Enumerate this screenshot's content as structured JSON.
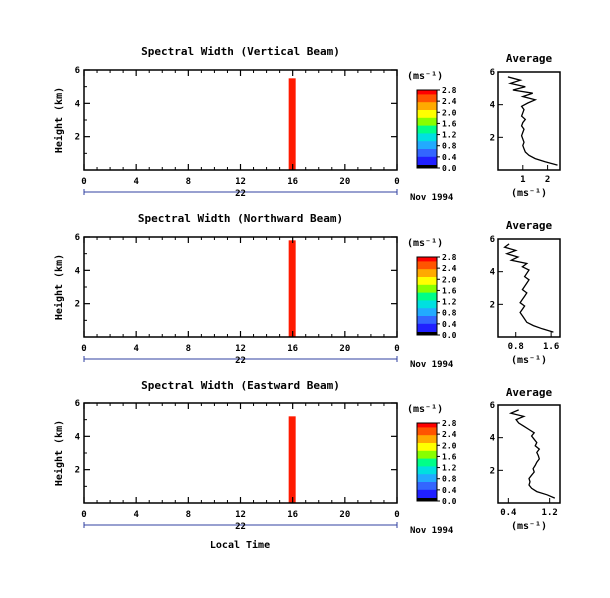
{
  "figure": {
    "x_tick_labels": [
      "0",
      "4",
      "8",
      "12",
      "16",
      "20",
      "0"
    ],
    "day_label": "22",
    "month_label": "Nov 1994",
    "x_axis_label": "Local Time",
    "y_axis_label": "Height (km)",
    "unit_label": "(ms⁻¹)",
    "average_title": "Average"
  },
  "colors": {
    "colormap": [
      "#000000",
      "#2020ff",
      "#3366ff",
      "#22aaff",
      "#00e0e0",
      "#00ff88",
      "#88ff00",
      "#ffff00",
      "#ffaa00",
      "#ff5500",
      "#ff0000"
    ],
    "axis_blue": "#3040a0"
  },
  "chart_data": [
    {
      "type": "heatmap",
      "title": "Spectral Width (Vertical Beam)",
      "xlabel": "",
      "ylabel": "Height (km)",
      "x_range_hours": [
        0,
        24
      ],
      "y_range_km": [
        0,
        6
      ],
      "y_ticks": [
        2,
        4,
        6
      ],
      "y_tick_labels": [
        "2",
        "4",
        "6"
      ],
      "colorbar_unit": "(ms⁻¹)",
      "colorbar_ticks": [
        "0.0",
        "0.4",
        "0.8",
        "1.2",
        "1.6",
        "2.0",
        "2.4",
        "2.8"
      ],
      "average_profile": {
        "title": "Average",
        "xlabel": "(ms⁻¹)",
        "xlim": [
          0,
          2.5
        ],
        "x_ticks": [
          1,
          2
        ],
        "x_tick_labels": [
          "1",
          "2"
        ],
        "y_ticks": [
          2,
          4,
          6
        ],
        "y_tick_labels": [
          "2",
          "4",
          "6"
        ],
        "height_km": [
          0.3,
          0.5,
          0.7,
          0.9,
          1.1,
          1.3,
          1.5,
          1.7,
          1.9,
          2.1,
          2.3,
          2.5,
          2.7,
          2.9,
          3.1,
          3.3,
          3.5,
          3.7,
          3.9,
          4.1,
          4.3,
          4.5,
          4.7,
          4.9,
          5.1,
          5.3,
          5.5,
          5.7
        ],
        "width_ms": [
          2.4,
          1.9,
          1.5,
          1.25,
          1.1,
          1.05,
          1.0,
          1.05,
          1.0,
          0.95,
          1.0,
          1.05,
          0.95,
          1.0,
          1.1,
          0.95,
          1.0,
          1.05,
          0.95,
          1.2,
          1.5,
          1.0,
          1.4,
          0.6,
          1.1,
          0.5,
          0.9,
          0.4
        ]
      }
    },
    {
      "type": "heatmap",
      "title": "Spectral Width (Northward Beam)",
      "xlabel": "",
      "ylabel": "Height (km)",
      "x_range_hours": [
        0,
        24
      ],
      "y_range_km": [
        0,
        6
      ],
      "y_ticks": [
        2,
        4,
        6
      ],
      "y_tick_labels": [
        "2",
        "4",
        "6"
      ],
      "colorbar_unit": "(ms⁻¹)",
      "colorbar_ticks": [
        "0.0",
        "0.4",
        "0.8",
        "1.2",
        "1.6",
        "2.0",
        "2.4",
        "2.8"
      ],
      "average_profile": {
        "title": "Average",
        "xlabel": "(ms⁻¹)",
        "xlim": [
          0.4,
          1.8
        ],
        "x_ticks": [
          0.8,
          1.6
        ],
        "x_tick_labels": [
          "0.8",
          "1.6"
        ],
        "y_ticks": [
          2,
          4,
          6
        ],
        "y_tick_labels": [
          "2",
          "4",
          "6"
        ],
        "height_km": [
          0.3,
          0.5,
          0.7,
          0.9,
          1.1,
          1.3,
          1.5,
          1.7,
          1.9,
          2.1,
          2.3,
          2.5,
          2.7,
          2.9,
          3.1,
          3.3,
          3.5,
          3.7,
          3.9,
          4.1,
          4.3,
          4.5,
          4.7,
          4.9,
          5.1,
          5.3,
          5.5,
          5.7
        ],
        "width_ms": [
          1.65,
          1.4,
          1.2,
          1.05,
          1.0,
          0.95,
          0.9,
          0.95,
          1.0,
          0.9,
          0.95,
          1.0,
          1.05,
          0.95,
          1.0,
          1.05,
          1.1,
          1.0,
          1.05,
          1.1,
          0.95,
          1.05,
          0.7,
          0.85,
          0.6,
          0.8,
          0.55,
          0.65
        ]
      }
    },
    {
      "type": "heatmap",
      "title": "Spectral Width (Eastward Beam)",
      "xlabel": "Local Time",
      "ylabel": "Height (km)",
      "x_range_hours": [
        0,
        24
      ],
      "y_range_km": [
        0,
        6
      ],
      "y_ticks": [
        2,
        4,
        6
      ],
      "y_tick_labels": [
        "2",
        "4",
        "6"
      ],
      "colorbar_unit": "(ms⁻¹)",
      "colorbar_ticks": [
        "0.0",
        "0.4",
        "0.8",
        "1.2",
        "1.6",
        "2.0",
        "2.4",
        "2.8"
      ],
      "average_profile": {
        "title": "Average",
        "xlabel": "(ms⁻¹)",
        "xlim": [
          0.2,
          1.4
        ],
        "x_ticks": [
          0.4,
          1.2
        ],
        "x_tick_labels": [
          "0.4",
          "1.2"
        ],
        "y_ticks": [
          2,
          4,
          6
        ],
        "y_tick_labels": [
          "2",
          "4",
          "6"
        ],
        "height_km": [
          0.3,
          0.5,
          0.7,
          0.9,
          1.1,
          1.3,
          1.5,
          1.7,
          1.9,
          2.1,
          2.3,
          2.5,
          2.7,
          2.9,
          3.1,
          3.3,
          3.5,
          3.7,
          3.9,
          4.1,
          4.3,
          4.5,
          4.7,
          4.9,
          5.1,
          5.3,
          5.5,
          5.7
        ],
        "width_ms": [
          1.3,
          1.15,
          0.95,
          0.85,
          0.8,
          0.82,
          0.8,
          0.85,
          0.9,
          0.88,
          0.92,
          0.95,
          1.0,
          0.98,
          0.95,
          1.0,
          0.92,
          0.95,
          0.9,
          0.85,
          0.9,
          0.8,
          0.7,
          0.6,
          0.55,
          0.7,
          0.45,
          0.6
        ]
      }
    }
  ]
}
